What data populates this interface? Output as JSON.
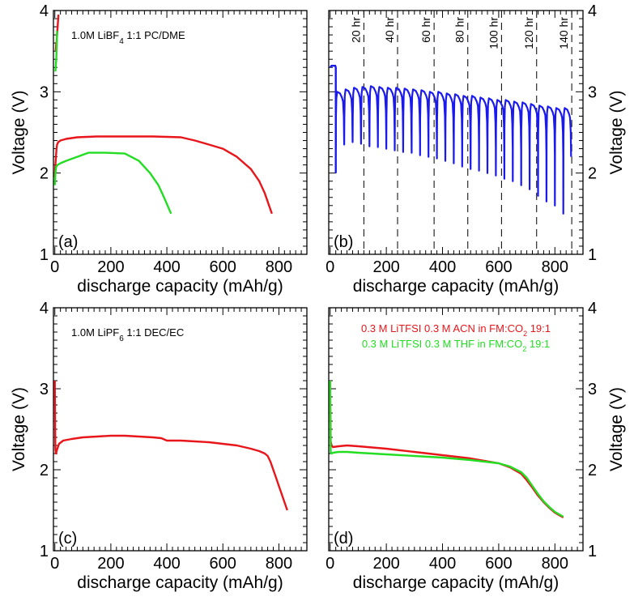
{
  "chart_data": [
    {
      "id": "a",
      "type": "line",
      "panel_label": "(a)",
      "annotation": "1.0M LiBF4 1:1 PC/DME",
      "annotation_parts": [
        "1.0M LiBF",
        "4",
        " 1:1 PC/DME"
      ],
      "xlabel": "discharge capacity (mAh/g)",
      "ylabel": "Voltage (V)",
      "ylabel_side": "left",
      "xlim": [
        -5,
        900
      ],
      "ylim": [
        1,
        4
      ],
      "xticks": [
        0,
        200,
        400,
        600,
        800
      ],
      "yticks": [
        1,
        2,
        3,
        4
      ],
      "series": [
        {
          "color": "#e8161b",
          "x": [
            0,
            2,
            4,
            6,
            8,
            12,
            20,
            40,
            80,
            150,
            250,
            350,
            450,
            500,
            550,
            600,
            650,
            700,
            730,
            750,
            765,
            775
          ],
          "y": [
            1.95,
            2.1,
            2.2,
            2.3,
            2.35,
            2.38,
            2.4,
            2.42,
            2.44,
            2.45,
            2.45,
            2.45,
            2.44,
            2.4,
            2.35,
            2.3,
            2.2,
            2.05,
            1.9,
            1.75,
            1.6,
            1.5
          ]
        },
        {
          "color": "#e8161b",
          "x": [
            3,
            4,
            5,
            6,
            7,
            8,
            9,
            10,
            11,
            12,
            13
          ],
          "y": [
            3.5,
            3.55,
            3.6,
            3.6,
            3.65,
            3.7,
            3.75,
            3.8,
            3.85,
            3.9,
            3.95
          ]
        },
        {
          "color": "#22dd22",
          "x": [
            0,
            2,
            5,
            10,
            20,
            40,
            80,
            120,
            180,
            250,
            300,
            340,
            370,
            390,
            405,
            415
          ],
          "y": [
            1.85,
            2.0,
            2.08,
            2.1,
            2.12,
            2.15,
            2.2,
            2.25,
            2.25,
            2.24,
            2.15,
            2.0,
            1.85,
            1.7,
            1.58,
            1.5
          ]
        },
        {
          "color": "#22dd22",
          "x": [
            2,
            3,
            4,
            5,
            6,
            7,
            8
          ],
          "y": [
            3.25,
            3.3,
            3.35,
            3.4,
            3.5,
            3.6,
            3.75
          ]
        }
      ]
    },
    {
      "id": "b",
      "type": "line",
      "panel_label": "(b)",
      "xlabel": "discharge capacity (mAh/g)",
      "ylabel": "Voltage (V)",
      "ylabel_side": "right",
      "xlim": [
        -5,
        900
      ],
      "ylim": [
        1,
        4
      ],
      "xticks": [
        0,
        200,
        400,
        600,
        800
      ],
      "yticks": [
        1,
        2,
        3,
        4
      ],
      "vlines": [
        {
          "x": 120,
          "label": "20 hr"
        },
        {
          "x": 240,
          "label": "40 hr"
        },
        {
          "x": 370,
          "label": "60 hr"
        },
        {
          "x": 490,
          "label": "80 hr"
        },
        {
          "x": 610,
          "label": "100 hr"
        },
        {
          "x": 735,
          "label": "120 hr"
        },
        {
          "x": 860,
          "label": "140 hr"
        }
      ],
      "initial_segment": {
        "x": [
          0,
          5,
          10,
          15,
          18,
          20,
          20
        ],
        "y": [
          3.3,
          3.32,
          3.32,
          3.32,
          3.32,
          3.3,
          2.0
        ]
      },
      "pulse_starts": [
        20,
        50,
        80,
        110,
        140,
        170,
        200,
        230,
        260,
        290,
        320,
        350,
        380,
        410,
        440,
        470,
        500,
        530,
        560,
        590,
        620,
        650,
        680,
        710,
        740,
        770,
        800,
        830,
        858
      ],
      "pulse_peaks": [
        3.0,
        3.03,
        3.05,
        3.06,
        3.07,
        3.06,
        3.05,
        3.05,
        3.04,
        3.03,
        3.02,
        3.0,
        3.0,
        2.98,
        2.97,
        2.95,
        2.95,
        2.93,
        2.92,
        2.9,
        2.9,
        2.88,
        2.87,
        2.85,
        2.83,
        2.82,
        2.8,
        2.8
      ],
      "pulse_troughs": [
        2.3,
        2.35,
        2.38,
        2.36,
        2.33,
        2.32,
        2.3,
        2.28,
        2.26,
        2.25,
        2.22,
        2.2,
        2.18,
        2.15,
        2.12,
        2.08,
        2.05,
        2.03,
        2.0,
        1.97,
        1.93,
        1.9,
        1.85,
        1.8,
        1.72,
        1.65,
        1.6,
        1.5
      ],
      "series_color": "#1a1aee"
    },
    {
      "id": "c",
      "type": "line",
      "panel_label": "(c)",
      "annotation": "1.0M LiPF6 1:1 DEC/EC",
      "annotation_parts": [
        "1.0M LiPF",
        "6",
        " 1:1 DEC/EC"
      ],
      "xlabel": "discharge capacity (mAh/g)",
      "ylabel": "Voltage (V)",
      "ylabel_side": "left",
      "xlim": [
        -5,
        900
      ],
      "ylim": [
        1,
        4
      ],
      "xticks": [
        0,
        200,
        400,
        600,
        800
      ],
      "yticks": [
        1,
        2,
        3,
        4
      ],
      "series": [
        {
          "color": "#e8161b",
          "x": [
            0,
            0.5,
            1,
            2,
            4,
            8,
            15,
            30,
            60,
            100,
            150,
            200,
            250,
            300,
            350,
            380,
            400,
            450,
            500,
            550,
            600,
            650,
            700,
            730,
            750,
            760,
            770,
            780,
            790,
            800,
            810,
            820,
            830
          ],
          "y": [
            3.1,
            2.8,
            2.5,
            2.25,
            2.2,
            2.25,
            2.32,
            2.36,
            2.38,
            2.4,
            2.41,
            2.42,
            2.42,
            2.41,
            2.4,
            2.39,
            2.36,
            2.36,
            2.35,
            2.34,
            2.32,
            2.3,
            2.26,
            2.23,
            2.2,
            2.17,
            2.1,
            2.0,
            1.9,
            1.8,
            1.7,
            1.6,
            1.5
          ]
        }
      ]
    },
    {
      "id": "d",
      "type": "line",
      "panel_label": "(d)",
      "legend": [
        {
          "parts": [
            "0.3 M LiTFSI 0.3 M ACN in FM:CO",
            "2",
            " 19:1"
          ],
          "color": "#e8161b"
        },
        {
          "parts": [
            "0.3 M LiTFSI 0.3 M THF in FM:CO",
            "2",
            " 19:1"
          ],
          "color": "#22dd22"
        }
      ],
      "xlabel": "discharge capacity (mAh/g)",
      "ylabel": "Voltage (V)",
      "ylabel_side": "right",
      "xlim": [
        -5,
        900
      ],
      "ylim": [
        1,
        4
      ],
      "xticks": [
        0,
        200,
        400,
        600,
        800
      ],
      "yticks": [
        1,
        2,
        3,
        4
      ],
      "series": [
        {
          "name": "0.3 M LiTFSI 0.3 M ACN in FM:CO2 19:1",
          "color": "#e8161b",
          "x": [
            0,
            1,
            2,
            5,
            10,
            30,
            60,
            100,
            200,
            300,
            400,
            500,
            550,
            600,
            640,
            680,
            700,
            720,
            740,
            760,
            780,
            800,
            820,
            830
          ],
          "y": [
            3.1,
            2.6,
            2.35,
            2.3,
            2.28,
            2.29,
            2.3,
            2.29,
            2.26,
            2.22,
            2.18,
            2.14,
            2.11,
            2.08,
            2.03,
            1.95,
            1.87,
            1.78,
            1.68,
            1.6,
            1.53,
            1.47,
            1.43,
            1.41
          ]
        },
        {
          "name": "0.3 M LiTFSI 0.3 M THF in FM:CO2 19:1",
          "color": "#22dd22",
          "x": [
            0,
            1,
            2,
            5,
            10,
            30,
            60,
            100,
            200,
            300,
            400,
            500,
            550,
            600,
            640,
            680,
            700,
            720,
            740,
            760,
            780,
            800,
            820,
            830
          ],
          "y": [
            3.1,
            2.5,
            2.22,
            2.2,
            2.21,
            2.22,
            2.22,
            2.21,
            2.19,
            2.17,
            2.15,
            2.12,
            2.1,
            2.08,
            2.04,
            1.97,
            1.9,
            1.8,
            1.7,
            1.61,
            1.54,
            1.48,
            1.44,
            1.42
          ]
        }
      ]
    }
  ]
}
